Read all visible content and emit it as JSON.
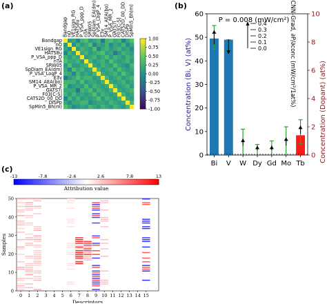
{
  "figure": {
    "panel_a_label": "(a)",
    "panel_b_label": "(b)",
    "panel_c_label": "(c)"
  },
  "chart_data": [
    {
      "type": "heatmap",
      "panel": "(a)",
      "descriptors": [
        "Bandgap",
        "nO",
        "VE1sign_RG",
        "HATS8u",
        "P_VSA_ppp_D",
        "nTA",
        "SRW05",
        "SpDiam_EA(dm)",
        "P_VSA_LogP_4",
        "E3v",
        "SM14_AEA(bo)",
        "P_VSA_MR_2",
        "GATS7i",
        "F03[C-S]",
        "CATS2D_00_DD",
        "DISPp",
        "SpMin5_Bh(m)"
      ],
      "colorbar": {
        "ticks": [
          1.0,
          0.75,
          0.5,
          0.25,
          0.0,
          -0.25,
          -0.5,
          -0.75,
          -1.0
        ],
        "vmin": -1,
        "vmax": 1
      },
      "matrix": [
        [
          1.0,
          0.1,
          0.2,
          -0.1,
          0.3,
          0.4,
          0.1,
          0.2,
          0.3,
          -0.2,
          0.3,
          0.4,
          0.2,
          0.3,
          -0.1,
          0.2,
          0.4
        ],
        [
          0.1,
          1.0,
          0.0,
          0.3,
          0.1,
          0.2,
          0.4,
          -0.1,
          0.2,
          0.1,
          0.3,
          0.0,
          0.2,
          0.1,
          0.3,
          0.0,
          0.2
        ],
        [
          0.2,
          0.0,
          1.0,
          0.1,
          0.3,
          0.2,
          0.1,
          0.4,
          -0.1,
          0.2,
          0.3,
          0.1,
          0.2,
          0.3,
          0.1,
          0.2,
          0.0
        ],
        [
          -0.1,
          0.3,
          0.1,
          1.0,
          0.2,
          0.3,
          0.1,
          0.2,
          0.3,
          0.4,
          0.1,
          0.2,
          -0.2,
          0.1,
          0.3,
          0.2,
          0.1
        ],
        [
          0.3,
          0.1,
          0.3,
          0.2,
          1.0,
          0.1,
          0.2,
          0.3,
          0.1,
          0.2,
          0.4,
          0.1,
          0.3,
          0.2,
          0.1,
          0.3,
          0.2
        ],
        [
          0.4,
          0.2,
          0.2,
          0.3,
          0.1,
          1.0,
          0.3,
          0.1,
          0.2,
          0.3,
          0.1,
          0.4,
          0.2,
          0.1,
          0.2,
          0.3,
          0.1
        ],
        [
          0.1,
          0.4,
          0.1,
          0.1,
          0.2,
          0.3,
          1.0,
          0.2,
          0.1,
          0.3,
          0.2,
          0.1,
          0.4,
          0.2,
          0.1,
          0.0,
          0.3
        ],
        [
          0.2,
          -0.1,
          0.4,
          0.2,
          0.3,
          0.1,
          0.2,
          1.0,
          0.3,
          0.1,
          0.2,
          0.3,
          0.1,
          0.4,
          0.2,
          0.1,
          0.2
        ],
        [
          0.3,
          0.2,
          -0.1,
          0.3,
          0.1,
          0.2,
          0.1,
          0.3,
          1.0,
          0.2,
          0.1,
          0.2,
          0.3,
          0.1,
          0.4,
          0.2,
          0.1
        ],
        [
          -0.2,
          0.1,
          0.2,
          0.4,
          0.2,
          0.3,
          0.3,
          0.1,
          0.2,
          1.0,
          0.3,
          0.1,
          0.2,
          0.3,
          0.1,
          0.2,
          0.3
        ],
        [
          0.3,
          0.3,
          0.3,
          0.1,
          0.4,
          0.1,
          0.2,
          0.2,
          0.1,
          0.3,
          1.0,
          0.2,
          0.1,
          0.2,
          0.3,
          0.1,
          0.2
        ],
        [
          0.4,
          0.0,
          0.1,
          0.2,
          0.1,
          0.4,
          0.1,
          0.3,
          0.2,
          0.1,
          0.2,
          1.0,
          0.3,
          0.1,
          0.2,
          0.3,
          0.1
        ],
        [
          0.2,
          0.2,
          0.2,
          -0.2,
          0.3,
          0.2,
          0.4,
          0.1,
          0.3,
          0.2,
          0.1,
          0.3,
          1.0,
          0.2,
          0.1,
          0.2,
          0.3
        ],
        [
          0.3,
          0.1,
          0.3,
          0.1,
          0.2,
          0.1,
          0.2,
          0.4,
          0.1,
          0.3,
          0.2,
          0.1,
          0.2,
          1.0,
          0.3,
          0.1,
          0.2
        ],
        [
          -0.1,
          0.3,
          0.1,
          0.3,
          0.1,
          0.2,
          0.1,
          0.2,
          0.4,
          0.1,
          0.3,
          0.2,
          0.1,
          0.3,
          1.0,
          0.2,
          0.1
        ],
        [
          0.2,
          0.0,
          0.2,
          0.2,
          0.3,
          0.3,
          0.0,
          0.1,
          0.2,
          0.2,
          0.1,
          0.3,
          0.2,
          0.1,
          0.2,
          1.0,
          0.3
        ],
        [
          0.4,
          0.2,
          0.0,
          0.1,
          0.2,
          0.1,
          0.3,
          0.2,
          0.1,
          0.3,
          0.2,
          0.1,
          0.3,
          0.2,
          0.1,
          0.3,
          1.0
        ]
      ]
    },
    {
      "type": "bar",
      "panel": "(b)",
      "annotation": "P = 0.008 (mW/cm²)",
      "categories": [
        "Bi",
        "V",
        "W",
        "Dy",
        "Gd",
        "Mo",
        "Tb"
      ],
      "ylabel_left": "Concentration (Bi, V) (at%)",
      "ylabel_right": "Concentration (Dopant) (at%)",
      "ylim_left": [
        0,
        60
      ],
      "yticks_left": [
        0,
        10,
        20,
        30,
        40,
        50,
        60
      ],
      "ylim_right": [
        0,
        10
      ],
      "yticks_right": [
        0,
        2,
        4,
        6,
        8,
        10
      ],
      "bars": [
        {
          "category": "Bi",
          "axis": "left",
          "value": 49.5,
          "err_low": 45,
          "err_high": 55,
          "color": "#1f77b4"
        },
        {
          "category": "V",
          "axis": "left",
          "value": 49,
          "err_low": 44,
          "err_high": 49,
          "color": "#1f77b4"
        },
        {
          "category": "Tb",
          "axis": "right",
          "value": 1.4,
          "err_low": 0.8,
          "err_high": 2.5,
          "color": "#ff1a1a"
        }
      ],
      "errorbars_only": [
        {
          "category": "W",
          "axis": "left",
          "value": 0.3,
          "low": 0,
          "high": 11
        },
        {
          "category": "Dy",
          "axis": "left",
          "value": 0,
          "low": 0,
          "high": 4.5
        },
        {
          "category": "Gd",
          "axis": "left",
          "value": 0.3,
          "low": 0,
          "high": 6
        },
        {
          "category": "Mo",
          "axis": "left",
          "value": 0.3,
          "low": 0,
          "high": 12
        }
      ],
      "arrows": [
        {
          "category": "Bi",
          "direction": "up",
          "from": 47,
          "to": 53
        },
        {
          "category": "V",
          "direction": "down",
          "from": 49,
          "to": 43
        },
        {
          "category": "W",
          "direction": "up",
          "from": 4,
          "to": 7
        },
        {
          "category": "Dy",
          "direction": "up",
          "from": 2,
          "to": 4
        },
        {
          "category": "Gd",
          "direction": "up",
          "from": 2,
          "to": 4
        },
        {
          "category": "Mo",
          "direction": "up",
          "from": 4,
          "to": 7.5
        },
        {
          "category": "Tb",
          "direction": "up",
          "from": 9,
          "to": 12.5
        }
      ],
      "legend": {
        "title": "CNN-Grad, ∂P/∂conc (mW/cm²/1at%)",
        "entries": [
          "0.4",
          "0.3",
          "0.2",
          "0.1",
          "0.0"
        ]
      }
    },
    {
      "type": "heatmap",
      "panel": "(c)",
      "colorbar_label": "Attribution value",
      "colorbar_ticks": [
        "-13",
        "-7.8",
        "-2.6",
        "2.6",
        "7.8",
        "13"
      ],
      "xlabel": "Descriptors",
      "ylabel": "Samples",
      "xticks": [
        "0",
        "1",
        "2",
        "3",
        "4",
        "5",
        "6",
        "7",
        "8",
        "9",
        "10",
        "11",
        "12",
        "13",
        "14",
        "15"
      ],
      "yticks": [
        "0",
        "10",
        "20",
        "30",
        "40",
        "50"
      ],
      "n_samples": 50,
      "n_descriptors": 17
    }
  ]
}
